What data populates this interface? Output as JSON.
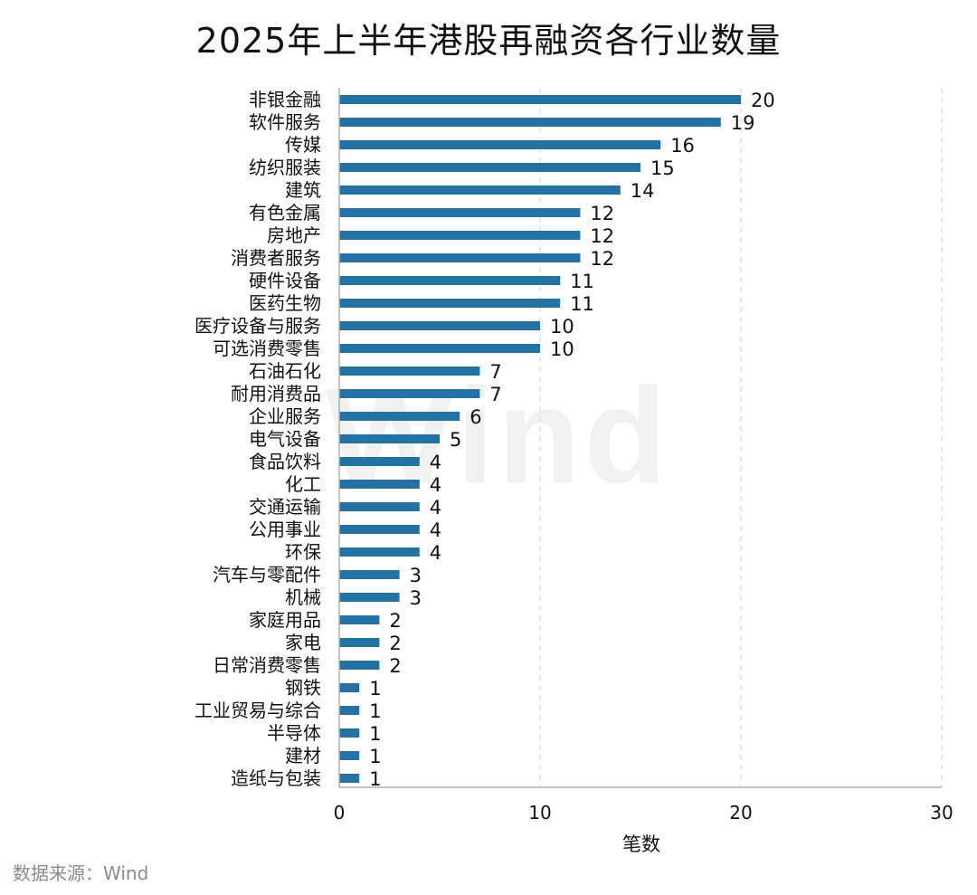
{
  "page": {
    "title": "2025年上半年港股再融资各行业数量",
    "source": "数据来源：Wind",
    "watermark": "Wind"
  },
  "colors": {
    "bar": "#2471A3",
    "grid": "#d9d9d9",
    "axis": "#b0b0b0",
    "text": "#111111"
  },
  "chart_data": {
    "type": "bar",
    "orientation": "horizontal",
    "title": "2025年上半年港股再融资各行业数量",
    "xlabel": "笔数",
    "ylabel": "",
    "xlim": [
      0,
      30
    ],
    "xticks": [
      0,
      10,
      20,
      30
    ],
    "grid": "vertical dashed",
    "legend": "none",
    "categories": [
      "非银金融",
      "软件服务",
      "传媒",
      "纺织服装",
      "建筑",
      "有色金属",
      "房地产",
      "消费者服务",
      "硬件设备",
      "医药生物",
      "医疗设备与服务",
      "可选消费零售",
      "石油石化",
      "耐用消费品",
      "企业服务",
      "电气设备",
      "食品饮料",
      "化工",
      "交通运输",
      "公用事业",
      "环保",
      "汽车与零配件",
      "机械",
      "家庭用品",
      "家电",
      "日常消费零售",
      "钢铁",
      "工业贸易与综合",
      "半导体",
      "建材",
      "造纸与包装"
    ],
    "values": [
      20,
      19,
      16,
      15,
      14,
      12,
      12,
      12,
      11,
      11,
      10,
      10,
      7,
      7,
      6,
      5,
      4,
      4,
      4,
      4,
      4,
      3,
      3,
      2,
      2,
      2,
      1,
      1,
      1,
      1,
      1
    ]
  }
}
